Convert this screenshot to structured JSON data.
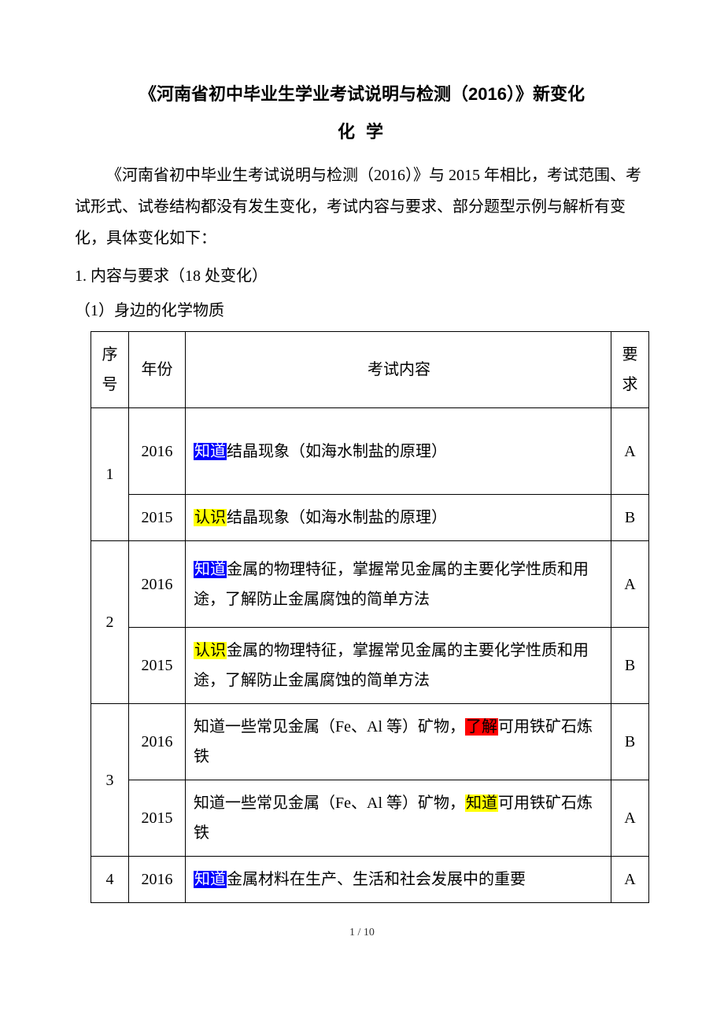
{
  "title": "《河南省初中毕业生学业考试说明与检测（2016）》新变化",
  "subtitle": "化 学",
  "intro": "《河南省初中毕业生考试说明与检测（2016）》与 2015 年相比，考试范围、考试形式、试卷结构都没有发生变化，考试内容与要求、部分题型示例与解析有变化，具体变化如下：",
  "section_heading": "1. 内容与要求（18 处变化）",
  "sub_heading": "（1）身边的化学物质",
  "headers": {
    "seq": "序号",
    "year": "年份",
    "content": "考试内容",
    "req": "要求"
  },
  "rows": [
    {
      "seq": "1",
      "year": "2016",
      "segments": [
        {
          "text": "知道",
          "hl": "blue"
        },
        {
          "text": "结晶现象（如海水制盐的原理）"
        }
      ],
      "req": "A",
      "tall": true
    },
    {
      "year": "2015",
      "segments": [
        {
          "text": "认识",
          "hl": "yellow"
        },
        {
          "text": "结晶现象（如海水制盐的原理）"
        }
      ],
      "req": "B"
    },
    {
      "seq": "2",
      "year": "2016",
      "segments": [
        {
          "text": "知道",
          "hl": "blue"
        },
        {
          "text": "金属的物理特征，掌握常见金属的主要化学性质和用途，了解防止金属腐蚀的简单方法"
        }
      ],
      "req": "A",
      "tall": true
    },
    {
      "year": "2015",
      "segments": [
        {
          "text": "认识",
          "hl": "yellow"
        },
        {
          "text": "金属的物理特征，掌握常见金属的主要化学性质和用途，了解防止金属腐蚀的简单方法"
        }
      ],
      "req": "B"
    },
    {
      "seq": "3",
      "year": "2016",
      "segments": [
        {
          "text": "知道一些常见金属（Fe、Al 等）矿物，"
        },
        {
          "text": "了解",
          "hl": "red"
        },
        {
          "text": "可用铁矿石炼铁"
        }
      ],
      "req": "B"
    },
    {
      "year": "2015",
      "segments": [
        {
          "text": "知道一些常见金属（Fe、Al 等）矿物，"
        },
        {
          "text": "知道",
          "hl": "yellow"
        },
        {
          "text": "可用铁矿石炼铁"
        }
      ],
      "req": "A"
    },
    {
      "seq": "4",
      "year": "2016",
      "segments": [
        {
          "text": "知道",
          "hl": "blue"
        },
        {
          "text": "金属材料在生产、生活和社会发展中的重要"
        }
      ],
      "req": "A"
    }
  ],
  "footer": "1 / 10",
  "colors": {
    "hl_blue_bg": "#0000ff",
    "hl_blue_fg": "#ffffff",
    "hl_yellow_bg": "#ffff00",
    "hl_red_bg": "#ff0000",
    "border": "#000000",
    "background": "#ffffff"
  },
  "fonts": {
    "body_size_pt": 15,
    "title_size_pt": 16
  }
}
